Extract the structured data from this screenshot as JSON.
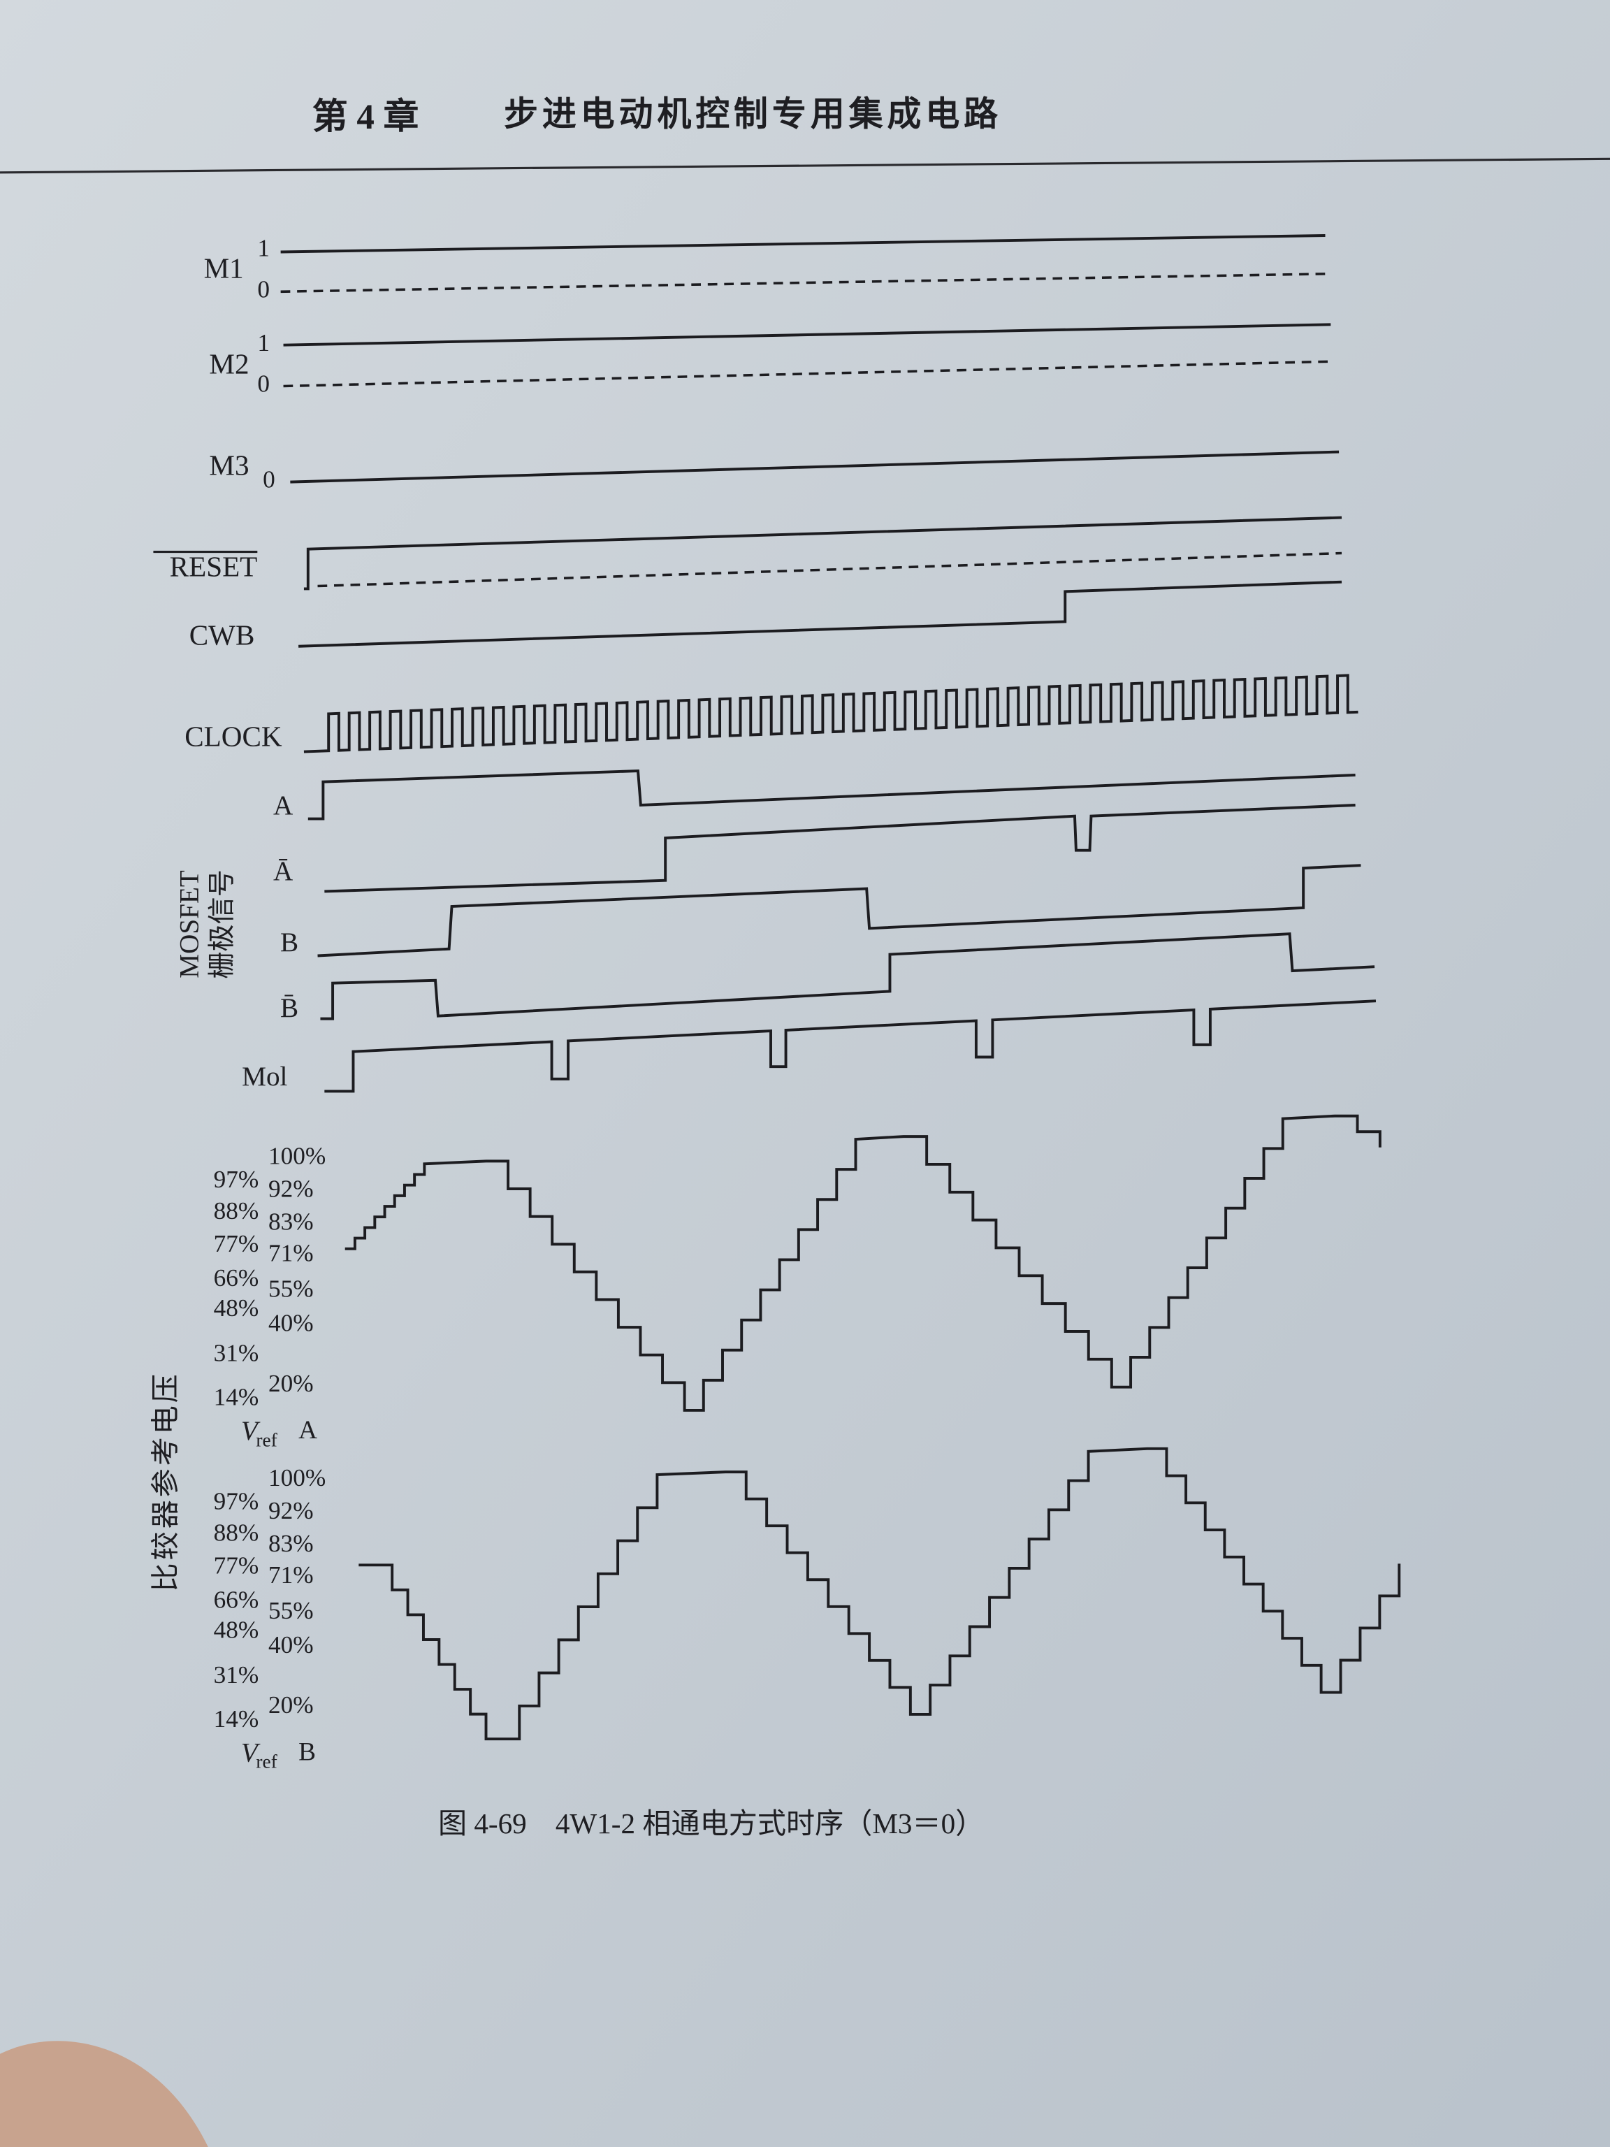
{
  "header": {
    "chapter": "第 4 章",
    "title": "步进电动机控制专用集成电路"
  },
  "control_signals": [
    {
      "label": "M1",
      "levels": [
        "1",
        "0"
      ]
    },
    {
      "label": "M2",
      "levels": [
        "1",
        "0"
      ]
    },
    {
      "label": "M3",
      "levels": [
        "0"
      ]
    },
    {
      "label": "RESET"
    },
    {
      "label": "CWB"
    },
    {
      "label": "CLOCK"
    }
  ],
  "gate_signals": {
    "group_label": [
      "MOSFET",
      "栅极信号"
    ],
    "signals": [
      "A",
      "Ā",
      "B",
      "B̄",
      "Mol"
    ]
  },
  "reference_voltage": {
    "group_label": "比较器参考电压",
    "waveforms": [
      {
        "symbol": "V",
        "subscript": "ref",
        "phase": "A",
        "left_levels": [
          "97%",
          "88%",
          "77%",
          "66%",
          "48%",
          "31%",
          "14%"
        ],
        "right_levels": [
          "100%",
          "92%",
          "83%",
          "71%",
          "55%",
          "40%",
          "20%"
        ]
      },
      {
        "symbol": "V",
        "subscript": "ref",
        "phase": "B",
        "left_levels": [
          "97%",
          "88%",
          "77%",
          "66%",
          "48%",
          "31%",
          "14%"
        ],
        "right_levels": [
          "100%",
          "92%",
          "83%",
          "71%",
          "55%",
          "40%",
          "20%"
        ]
      }
    ]
  },
  "caption": "图 4-69　4W1-2 相通电方式时序（M3＝0）"
}
